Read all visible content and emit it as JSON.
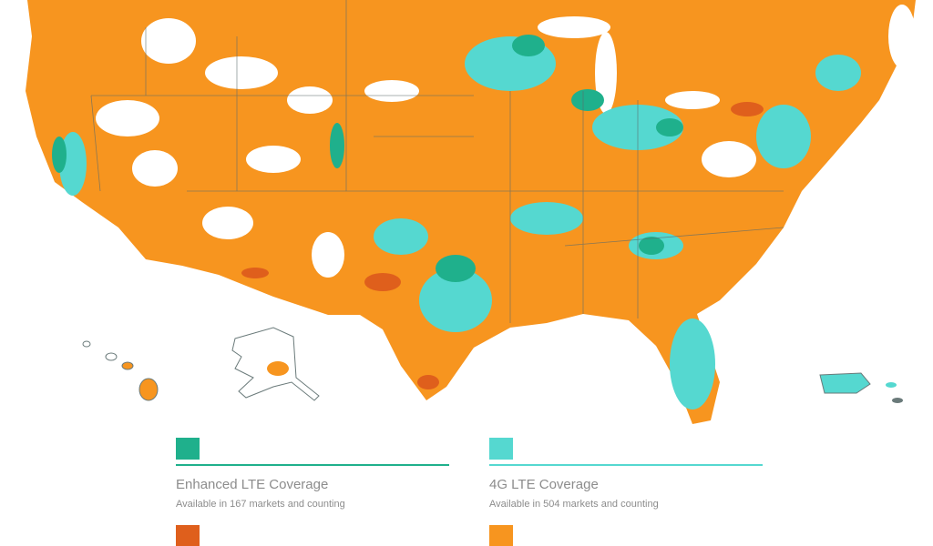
{
  "legend": {
    "items": [
      {
        "name": "Enhanced LTE Coverage",
        "description": "Available in 167 markets and counting",
        "color": "#1fb08c"
      },
      {
        "name": "4G LTE Coverage",
        "description": "Available in 504 markets and counting",
        "color": "#55d8d0"
      },
      {
        "color": "#df5f1c"
      },
      {
        "color": "#f7951f"
      }
    ]
  }
}
